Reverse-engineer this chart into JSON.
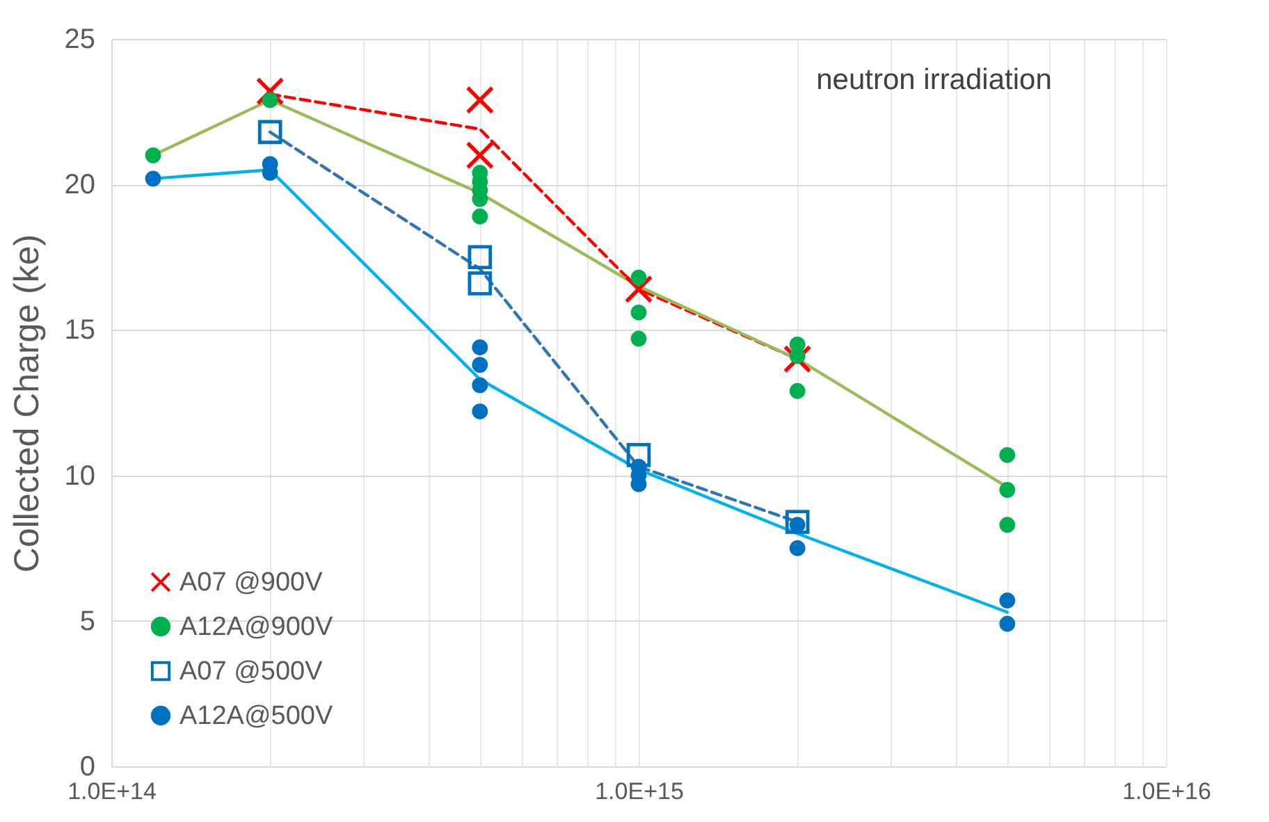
{
  "chart_data": {
    "type": "scatter",
    "ylabel": "Collected Charge (ke)",
    "annotations": [
      "neutron irradiation"
    ],
    "log": "x",
    "grid": true,
    "legend": "bottom left",
    "xlim": [
      100000000000000.0,
      1e+16
    ],
    "xticks": [
      {
        "value": 100000000000000.0,
        "label": "1.0E+14"
      },
      {
        "value": 200000000000000.0,
        "label": null
      },
      {
        "value": 300000000000000.0,
        "label": null
      },
      {
        "value": 400000000000000.0,
        "label": null
      },
      {
        "value": 500000000000000.0,
        "label": null
      },
      {
        "value": 600000000000000.0,
        "label": null
      },
      {
        "value": 700000000000000.0,
        "label": null
      },
      {
        "value": 800000000000000.0,
        "label": null
      },
      {
        "value": 900000000000000.0,
        "label": null
      },
      {
        "value": 1000000000000000.0,
        "label": "1.0E+15"
      },
      {
        "value": 2000000000000000.0,
        "label": null
      },
      {
        "value": 3000000000000000.0,
        "label": null
      },
      {
        "value": 4000000000000000.0,
        "label": null
      },
      {
        "value": 5000000000000000.0,
        "label": null
      },
      {
        "value": 6000000000000000.0,
        "label": null
      },
      {
        "value": 7000000000000000.0,
        "label": null
      },
      {
        "value": 8000000000000000.0,
        "label": null
      },
      {
        "value": 9000000000000000.0,
        "label": null
      },
      {
        "value": 1e+16,
        "label": "1.0E+16"
      }
    ],
    "ylim": [
      0,
      25
    ],
    "yticks": [
      0,
      5,
      10,
      15,
      20,
      25
    ],
    "series": [
      {
        "type": "line",
        "color": "#ff0000",
        "line_style": "dashed",
        "x": [
          200000000000000.0,
          500000000000000.0,
          1000000000000000.0,
          2000000000000000.0
        ],
        "values": [
          23.1,
          21.9,
          16.4,
          14.0
        ]
      },
      {
        "type": "line",
        "color": "#9bbb59",
        "line_style": "solid",
        "x": [
          120000000000000.0,
          200000000000000.0,
          500000000000000.0,
          1000000000000000.0,
          2000000000000000.0,
          5000000000000000.0
        ],
        "values": [
          21.0,
          22.9,
          19.7,
          16.5,
          14.0,
          9.6
        ]
      },
      {
        "type": "line",
        "color": "#2e75b6",
        "line_style": "dashed",
        "x": [
          200000000000000.0,
          500000000000000.0,
          1000000000000000.0,
          2000000000000000.0
        ],
        "values": [
          21.8,
          17.1,
          10.3,
          8.4
        ]
      },
      {
        "type": "line",
        "color": "#00b0f0",
        "line_style": "solid",
        "x": [
          120000000000000.0,
          200000000000000.0,
          500000000000000.0,
          1000000000000000.0,
          2000000000000000.0,
          5000000000000000.0
        ],
        "values": [
          20.2,
          20.5,
          13.3,
          10.2,
          8.0,
          5.3
        ]
      },
      {
        "type": "scatter",
        "name": "A07 @900V",
        "color": "#ff0000",
        "marker": "cross",
        "x": [
          200000000000000.0,
          500000000000000.0,
          500000000000000.0,
          1000000000000000.0,
          2000000000000000.0
        ],
        "values": [
          23.2,
          22.9,
          21.0,
          16.4,
          14.0
        ]
      },
      {
        "type": "scatter",
        "name": "A12A@900V",
        "color": "#00b050",
        "marker": "circle",
        "x": [
          120000000000000.0,
          200000000000000.0,
          500000000000000.0,
          500000000000000.0,
          500000000000000.0,
          500000000000000.0,
          500000000000000.0,
          1000000000000000.0,
          1000000000000000.0,
          1000000000000000.0,
          2000000000000000.0,
          2000000000000000.0,
          2000000000000000.0,
          5000000000000000.0,
          5000000000000000.0,
          5000000000000000.0
        ],
        "values": [
          21.0,
          22.9,
          20.4,
          20.1,
          19.8,
          19.5,
          18.9,
          16.8,
          15.6,
          14.7,
          14.5,
          14.1,
          12.9,
          10.7,
          9.5,
          8.3
        ]
      },
      {
        "type": "scatter",
        "name": "A07 @500V",
        "color": "#0070c0",
        "marker": "square",
        "x": [
          200000000000000.0,
          500000000000000.0,
          500000000000000.0,
          1000000000000000.0,
          2000000000000000.0
        ],
        "values": [
          21.8,
          17.5,
          16.6,
          10.7,
          8.4
        ]
      },
      {
        "type": "scatter",
        "name": "A12A@500V",
        "color": "#0070c0",
        "marker": "circle",
        "x": [
          120000000000000.0,
          200000000000000.0,
          200000000000000.0,
          500000000000000.0,
          500000000000000.0,
          500000000000000.0,
          500000000000000.0,
          1000000000000000.0,
          1000000000000000.0,
          1000000000000000.0,
          2000000000000000.0,
          2000000000000000.0,
          5000000000000000.0,
          5000000000000000.0
        ],
        "values": [
          20.2,
          20.7,
          20.4,
          14.4,
          13.8,
          13.1,
          12.2,
          10.3,
          10.0,
          9.7,
          8.3,
          7.5,
          5.7,
          4.9
        ]
      }
    ]
  }
}
